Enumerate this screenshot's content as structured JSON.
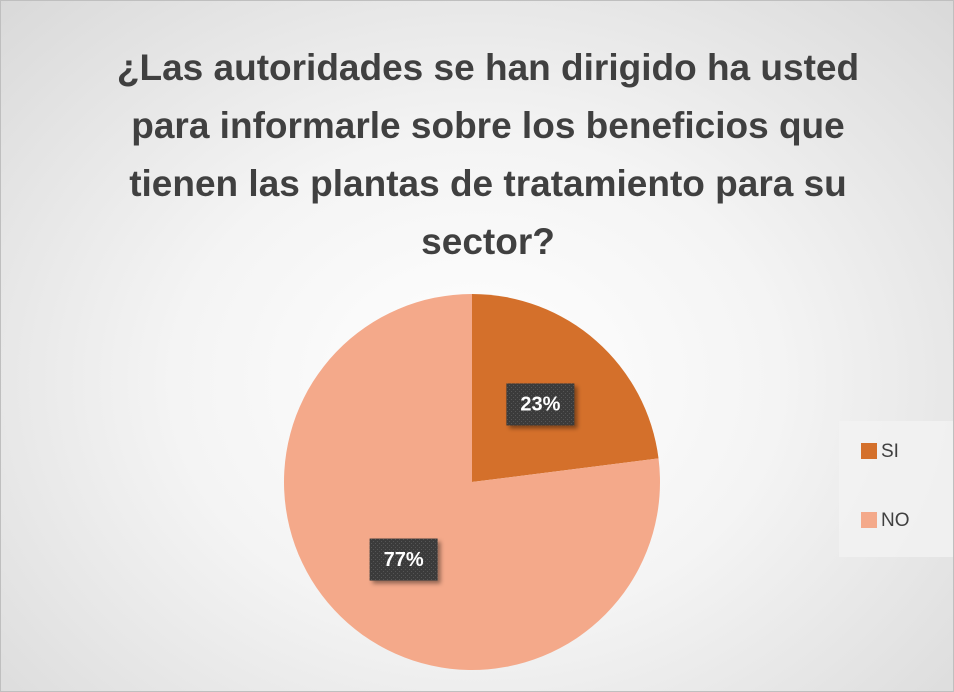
{
  "chart_data": {
    "type": "pie",
    "title": "¿Las autoridades se han dirigido ha usted para informarle sobre los beneficios que tienen las plantas de tratamiento para su sector?",
    "categories": [
      "SI",
      "NO"
    ],
    "values": [
      23,
      77
    ],
    "value_labels": [
      "23%",
      "77%"
    ],
    "colors": [
      "#d4702b",
      "#f4a98a"
    ],
    "legend": "right"
  }
}
